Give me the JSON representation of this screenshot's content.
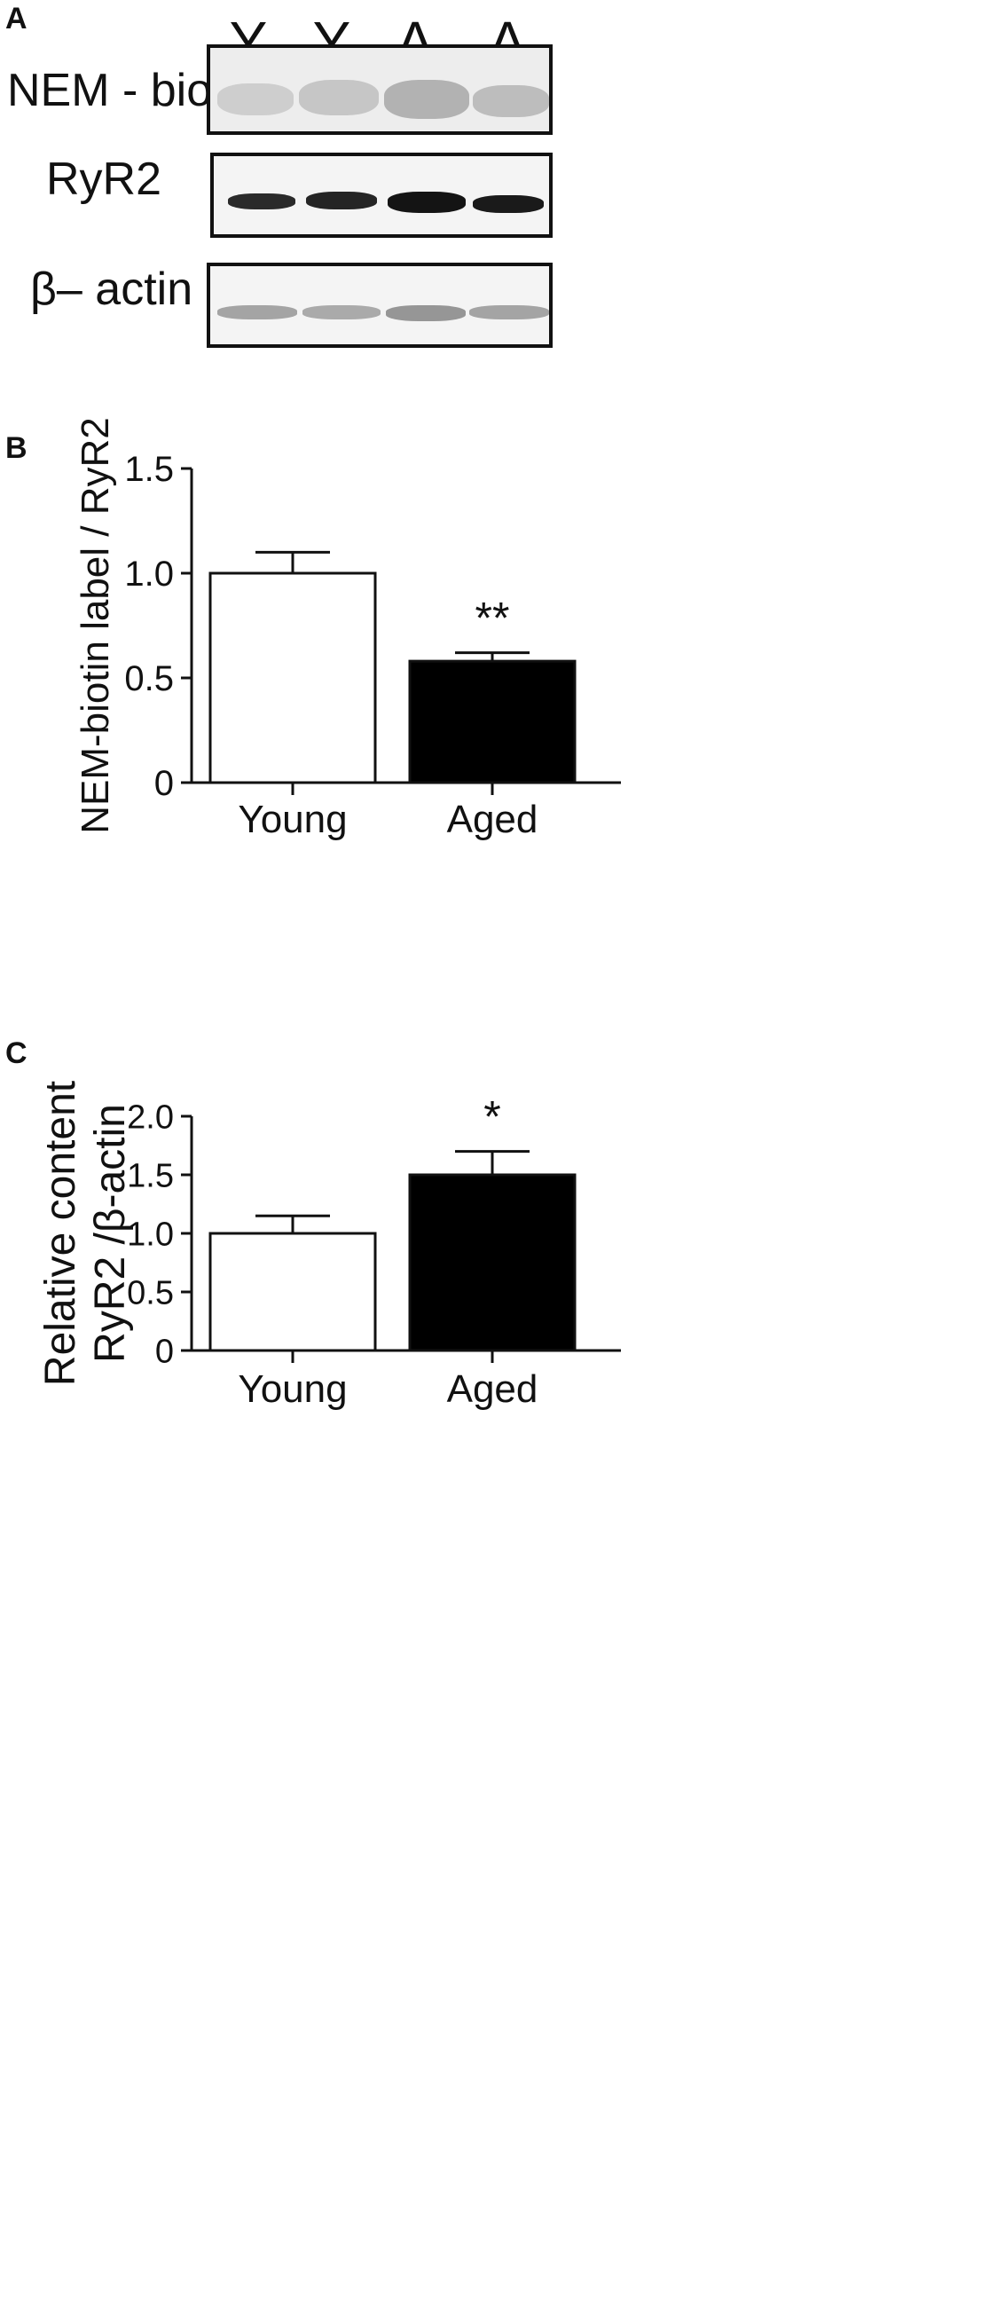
{
  "panels": {
    "a": {
      "letter": "A"
    },
    "b": {
      "letter": "B"
    },
    "c": {
      "letter": "C"
    }
  },
  "blot": {
    "lanes": [
      "Y",
      "Y",
      "A",
      "A"
    ],
    "rows": [
      {
        "label": "NEM - biotin"
      },
      {
        "label": "RyR2"
      },
      {
        "label": "β– actin"
      }
    ]
  },
  "chart_data": [
    {
      "type": "bar",
      "categories": [
        "Young",
        "Aged"
      ],
      "values": [
        1.0,
        0.58
      ],
      "errors": [
        0.1,
        0.04
      ],
      "colors": [
        "#ffffff",
        "#000000"
      ],
      "significance": [
        "",
        "**"
      ],
      "ylabel": "NEM-biotin label / RyR2",
      "ylim": [
        0,
        1.5
      ],
      "yticks": [
        "0",
        "0.5",
        "1.0",
        "1.5"
      ]
    },
    {
      "type": "bar",
      "categories": [
        "Young",
        "Aged"
      ],
      "values": [
        1.0,
        1.5
      ],
      "errors": [
        0.15,
        0.2
      ],
      "colors": [
        "#ffffff",
        "#000000"
      ],
      "significance": [
        "",
        "*"
      ],
      "ylabel_lines": [
        "Relative content",
        "RyR2 /β-actin"
      ],
      "ylim": [
        0,
        2.0
      ],
      "yticks": [
        "0",
        "0.5",
        "1.0",
        "1.5",
        "2.0"
      ]
    }
  ]
}
